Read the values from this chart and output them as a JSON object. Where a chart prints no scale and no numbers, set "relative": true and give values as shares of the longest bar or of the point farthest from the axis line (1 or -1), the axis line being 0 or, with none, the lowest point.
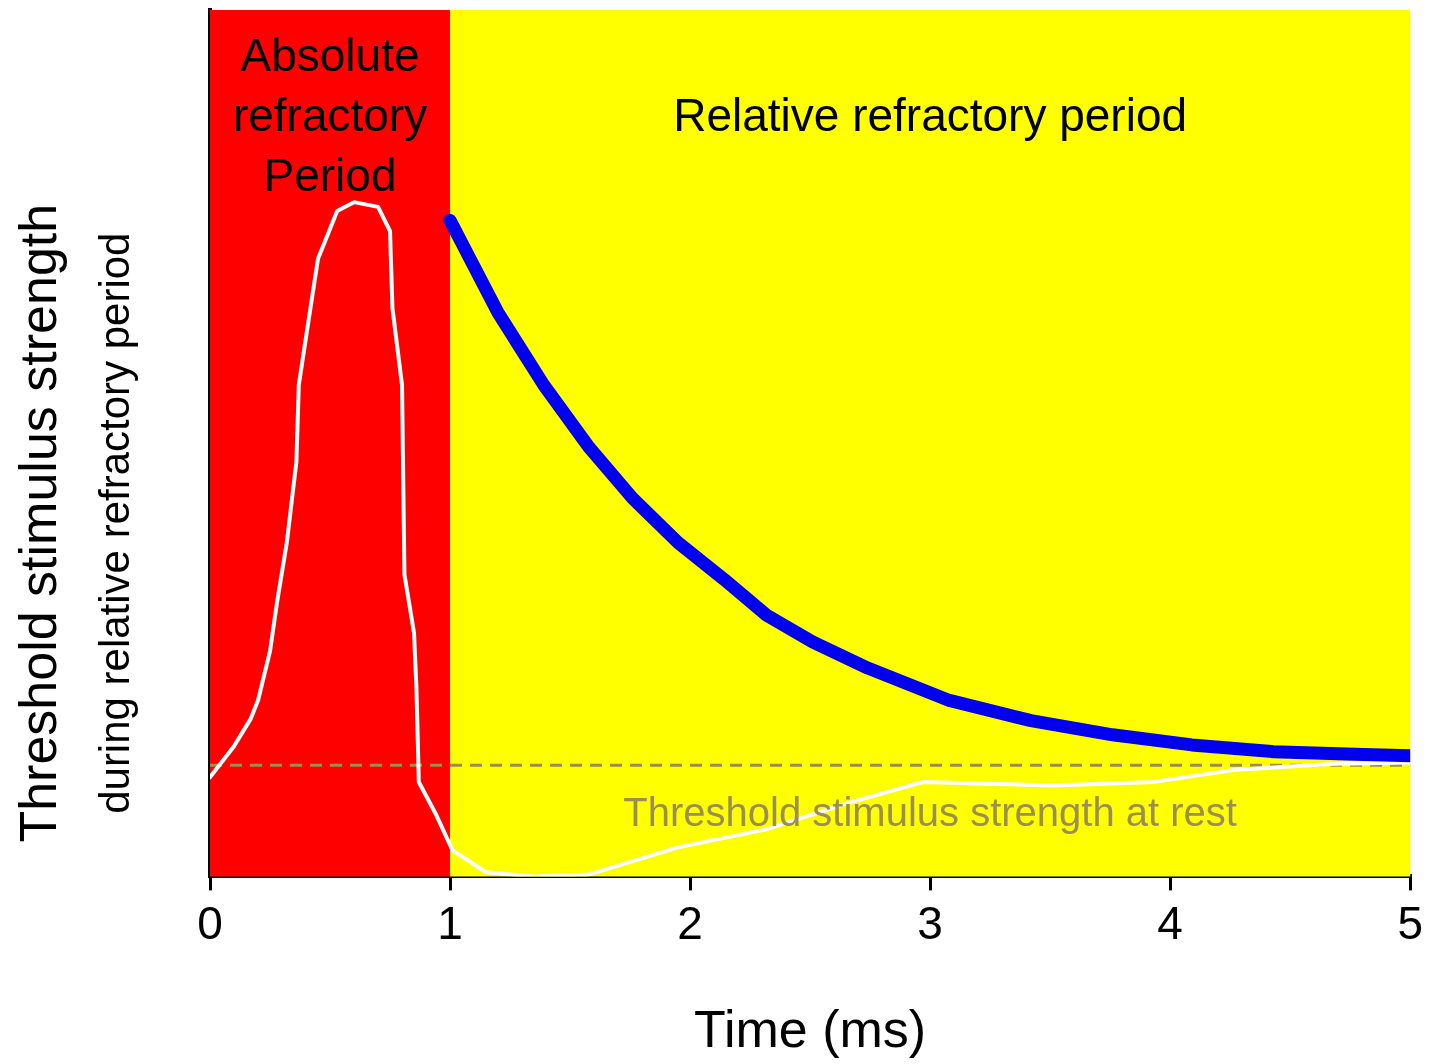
{
  "chart_data": {
    "type": "line",
    "relative": true,
    "xlabel": "Time (ms)",
    "ylabel": "Threshold stimulus strength\nduring relative refractory period",
    "xlim": [
      0,
      5
    ],
    "xticks": [
      0,
      1,
      2,
      3,
      4,
      5
    ],
    "tick_labels": "x",
    "grid": false,
    "legend": false,
    "marker": "none",
    "line_style": "solid",
    "bands": [
      {
        "axis": "x",
        "from": 0,
        "to": 1,
        "label": "Absolute refractory Period",
        "color": "#ff0000"
      },
      {
        "axis": "x",
        "from": 1,
        "to": 5,
        "label": "Relative refractory period",
        "color": "#ffff00"
      }
    ],
    "ref_lines": [
      {
        "axis": "y",
        "value": 0.165,
        "label": "Threshold stimulus strength at rest",
        "color": "#9a8f50",
        "line_style": "dashed"
      }
    ],
    "series": [
      {
        "color": "#0000ee",
        "x": [
          1.0,
          1.2,
          1.39,
          1.58,
          1.76,
          1.95,
          2.14,
          2.32,
          2.51,
          2.74,
          3.08,
          3.42,
          3.76,
          4.09,
          4.43,
          4.77,
          5.0
        ],
        "values": [
          0.973,
          0.836,
          0.729,
          0.636,
          0.561,
          0.495,
          0.441,
          0.387,
          0.348,
          0.309,
          0.261,
          0.231,
          0.21,
          0.195,
          0.185,
          0.181,
          0.179
        ]
      },
      {
        "color": "#ffffff",
        "x": [
          0,
          0.1,
          0.17,
          0.2,
          0.25,
          0.28,
          0.32,
          0.36,
          0.37,
          0.41,
          0.45,
          0.53,
          0.6,
          0.7,
          0.75,
          0.76,
          0.8,
          0.81,
          0.85,
          0.86,
          0.87,
          0.94,
          1.01,
          1.15,
          1.35,
          1.58,
          1.95,
          2.32,
          2.66,
          2.97,
          3.51,
          3.93,
          4.27,
          4.69,
          5.0
        ],
        "values": [
          0.147,
          0.193,
          0.234,
          0.261,
          0.334,
          0.408,
          0.495,
          0.615,
          0.729,
          0.823,
          0.916,
          0.987,
          1.0,
          0.993,
          0.957,
          0.843,
          0.729,
          0.448,
          0.361,
          0.28,
          0.14,
          0.093,
          0.039,
          0.006,
          0.0,
          0.003,
          0.043,
          0.07,
          0.109,
          0.14,
          0.135,
          0.14,
          0.158,
          0.167,
          0.169
        ]
      }
    ]
  }
}
